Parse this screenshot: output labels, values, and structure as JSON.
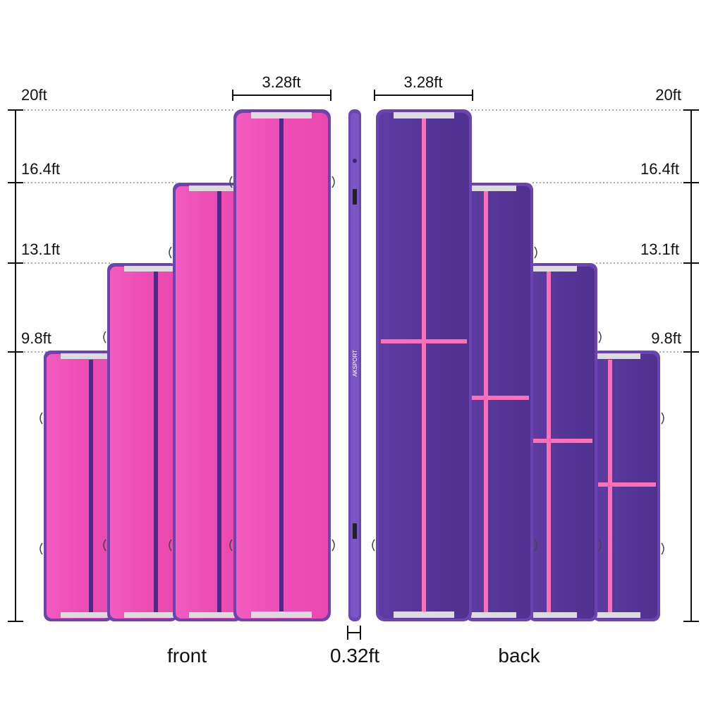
{
  "heights": {
    "left": [
      "20ft",
      "16.4ft",
      "13.1ft",
      "9.8ft"
    ],
    "right": [
      "20ft",
      "16.4ft",
      "13.1ft",
      "9.8ft"
    ]
  },
  "width_front": "3.28ft",
  "width_back": "3.28ft",
  "thickness": "0.32ft",
  "front_label": "front",
  "back_label": "back",
  "brand_mark": "AKSPORT",
  "colors": {
    "pink": "#ef4fb8",
    "pink_dark": "#d93aa3",
    "purple": "#5b3a9e",
    "purple_dark": "#43288a",
    "edge": "#6e48b6",
    "handle": "#d9d9d9",
    "stripe_front": "#4b2a8a",
    "stripe_back": "#ff6fb5"
  }
}
